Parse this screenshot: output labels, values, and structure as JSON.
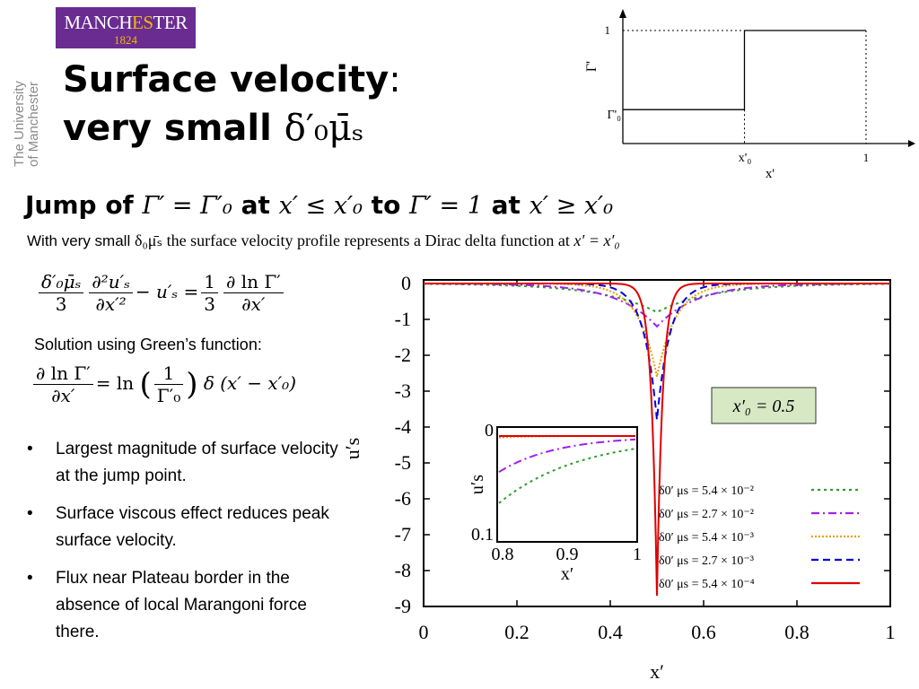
{
  "logo": {
    "line1_a": "MANCH",
    "line1_b": "ES",
    "line1_c": "TER",
    "year": "1824"
  },
  "side_text": {
    "line1": "The University",
    "line2": "of Manchester"
  },
  "title": {
    "line1": "Surface velocity",
    "line1_suffix": ":",
    "line2_text": "very small ",
    "line2_math": "δ′₀μ̄ₛ"
  },
  "subheading": {
    "p1": "Jump of ",
    "m1": "Γ′ = Γ′₀",
    "p2": " at ",
    "m2": "x′ ≤  x′₀",
    "p3": " to ",
    "m3": "Γ′ = 1",
    "p4": " at ",
    "m4": "x′ ≥  x′₀"
  },
  "description": {
    "pre": "With very small ",
    "math1": "δ₀μ̄ₛ",
    "mid": " the surface velocity profile represents a Dirac delta function at ",
    "math2": "x′ =  x′₀"
  },
  "equation1": {
    "num1": "δ′₀μ̄ₛ",
    "den1": "3",
    "num2": "∂²u′ₛ",
    "den2": "∂x′²",
    "minus": "− u′ₛ =",
    "num3": "1",
    "den3": "3",
    "num4": "∂ ln Γ′",
    "den4": "∂x′"
  },
  "solution_label": "Solution using Green’s function:",
  "equation2": {
    "num1": "∂ ln Γ′",
    "den1": "∂x′",
    "eq": "= ln",
    "num2": "1",
    "den2": "Γ′₀",
    "rest": "δ (x′ − x′₀)"
  },
  "bullets": [
    "Largest magnitude of surface velocity at the jump point.",
    "Surface viscous effect reduces peak surface velocity.",
    "Flux near Plateau border in the absence of local Marangoni force there."
  ],
  "bullet_symbol": "•",
  "chart_data": [
    {
      "type": "line",
      "title": "",
      "xlabel": "x'",
      "ylabel": "Γ'",
      "x_ticks": [
        "x'₀",
        "1"
      ],
      "y_ticks": [
        "1",
        "Γ'₀"
      ],
      "x0": 0.5,
      "gamma0": 0.3,
      "series": [
        {
          "x": [
            0,
            0.5,
            0.5,
            1
          ],
          "y": [
            0.3,
            0.3,
            1,
            1
          ]
        }
      ]
    },
    {
      "type": "line",
      "title": "",
      "xlabel": "x′",
      "ylabel": "u′s",
      "xlim": [
        0,
        1
      ],
      "ylim": [
        -9,
        0
      ],
      "x_ticks": [
        0,
        0.2,
        0.4,
        0.6,
        0.8,
        1
      ],
      "y_ticks": [
        0,
        -1,
        -2,
        -3,
        -4,
        -5,
        -6,
        -7,
        -8,
        -9
      ],
      "annotation": "x′₀ = 0.5",
      "legend_position": "bottom-right",
      "series": [
        {
          "name": "δ0′ μs = 5.4 × 10⁻²",
          "color": "#2e9e2e",
          "dash": "3,4",
          "peak": -0.8,
          "width": 0.12
        },
        {
          "name": "δ0′ μs = 2.7 × 10⁻²",
          "color": "#a020f0",
          "dash": "9,4,2,4",
          "peak": -1.2,
          "width": 0.085
        },
        {
          "name": "δ0′ μs = 5.4 × 10⁻³",
          "color": "#e8a000",
          "dash": "2,2",
          "peak": -2.6,
          "width": 0.04
        },
        {
          "name": "δ0′ μs = 2.7 × 10⁻³",
          "color": "#0000e0",
          "dash": "8,5",
          "peak": -3.8,
          "width": 0.028
        },
        {
          "name": "δ0′ μs = 5.4 × 10⁻⁴",
          "color": "#e00000",
          "dash": "",
          "peak": -8.7,
          "width": 0.012
        }
      ]
    },
    {
      "type": "line",
      "title": "",
      "xlabel": "x′",
      "ylabel": "u′s",
      "xlim": [
        0.8,
        1
      ],
      "y_ticks": [
        "0",
        "0.1"
      ],
      "x_ticks": [
        "0.8",
        "0.9",
        "1"
      ]
    }
  ]
}
